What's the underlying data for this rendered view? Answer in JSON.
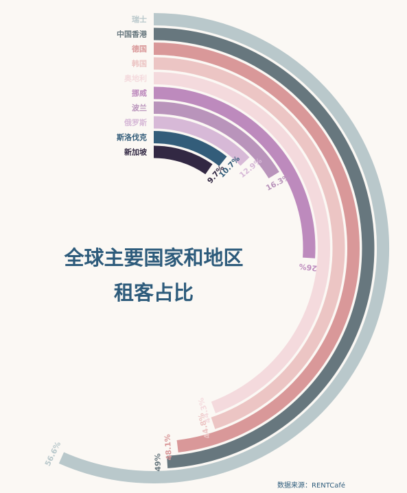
{
  "chart_data": {
    "type": "radial-bar",
    "title_line1": "全球主要国家和地区",
    "title_line2": "租客占比",
    "source": "数据来源：RENTCafé",
    "series": [
      {
        "name": "瑞士",
        "value": 56.6,
        "label": "56.6%",
        "color": "#b9c8cb"
      },
      {
        "name": "中国香港",
        "value": 49,
        "label": "49%",
        "color": "#67777e"
      },
      {
        "name": "德国",
        "value": 48.1,
        "label": "48.1%",
        "color": "#d99899"
      },
      {
        "name": "韩国",
        "value": 44.8,
        "label": "44.8%",
        "color": "#ecc5c4"
      },
      {
        "name": "奥地利",
        "value": 44.3,
        "label": "44.3%",
        "color": "#f4dadd"
      },
      {
        "name": "挪威",
        "value": 26,
        "label": "26%",
        "color": "#bd8abd"
      },
      {
        "name": "波兰",
        "value": 16.3,
        "label": "16.3%",
        "color": "#b994bb"
      },
      {
        "name": "俄罗斯",
        "value": 12.9,
        "label": "12.9%",
        "color": "#d7b9d7"
      },
      {
        "name": "斯洛伐克",
        "value": 10.7,
        "label": "10.7%",
        "color": "#335d7a"
      },
      {
        "name": "新加坡",
        "value": 9.7,
        "label": "9.7%",
        "color": "#322843"
      }
    ]
  }
}
